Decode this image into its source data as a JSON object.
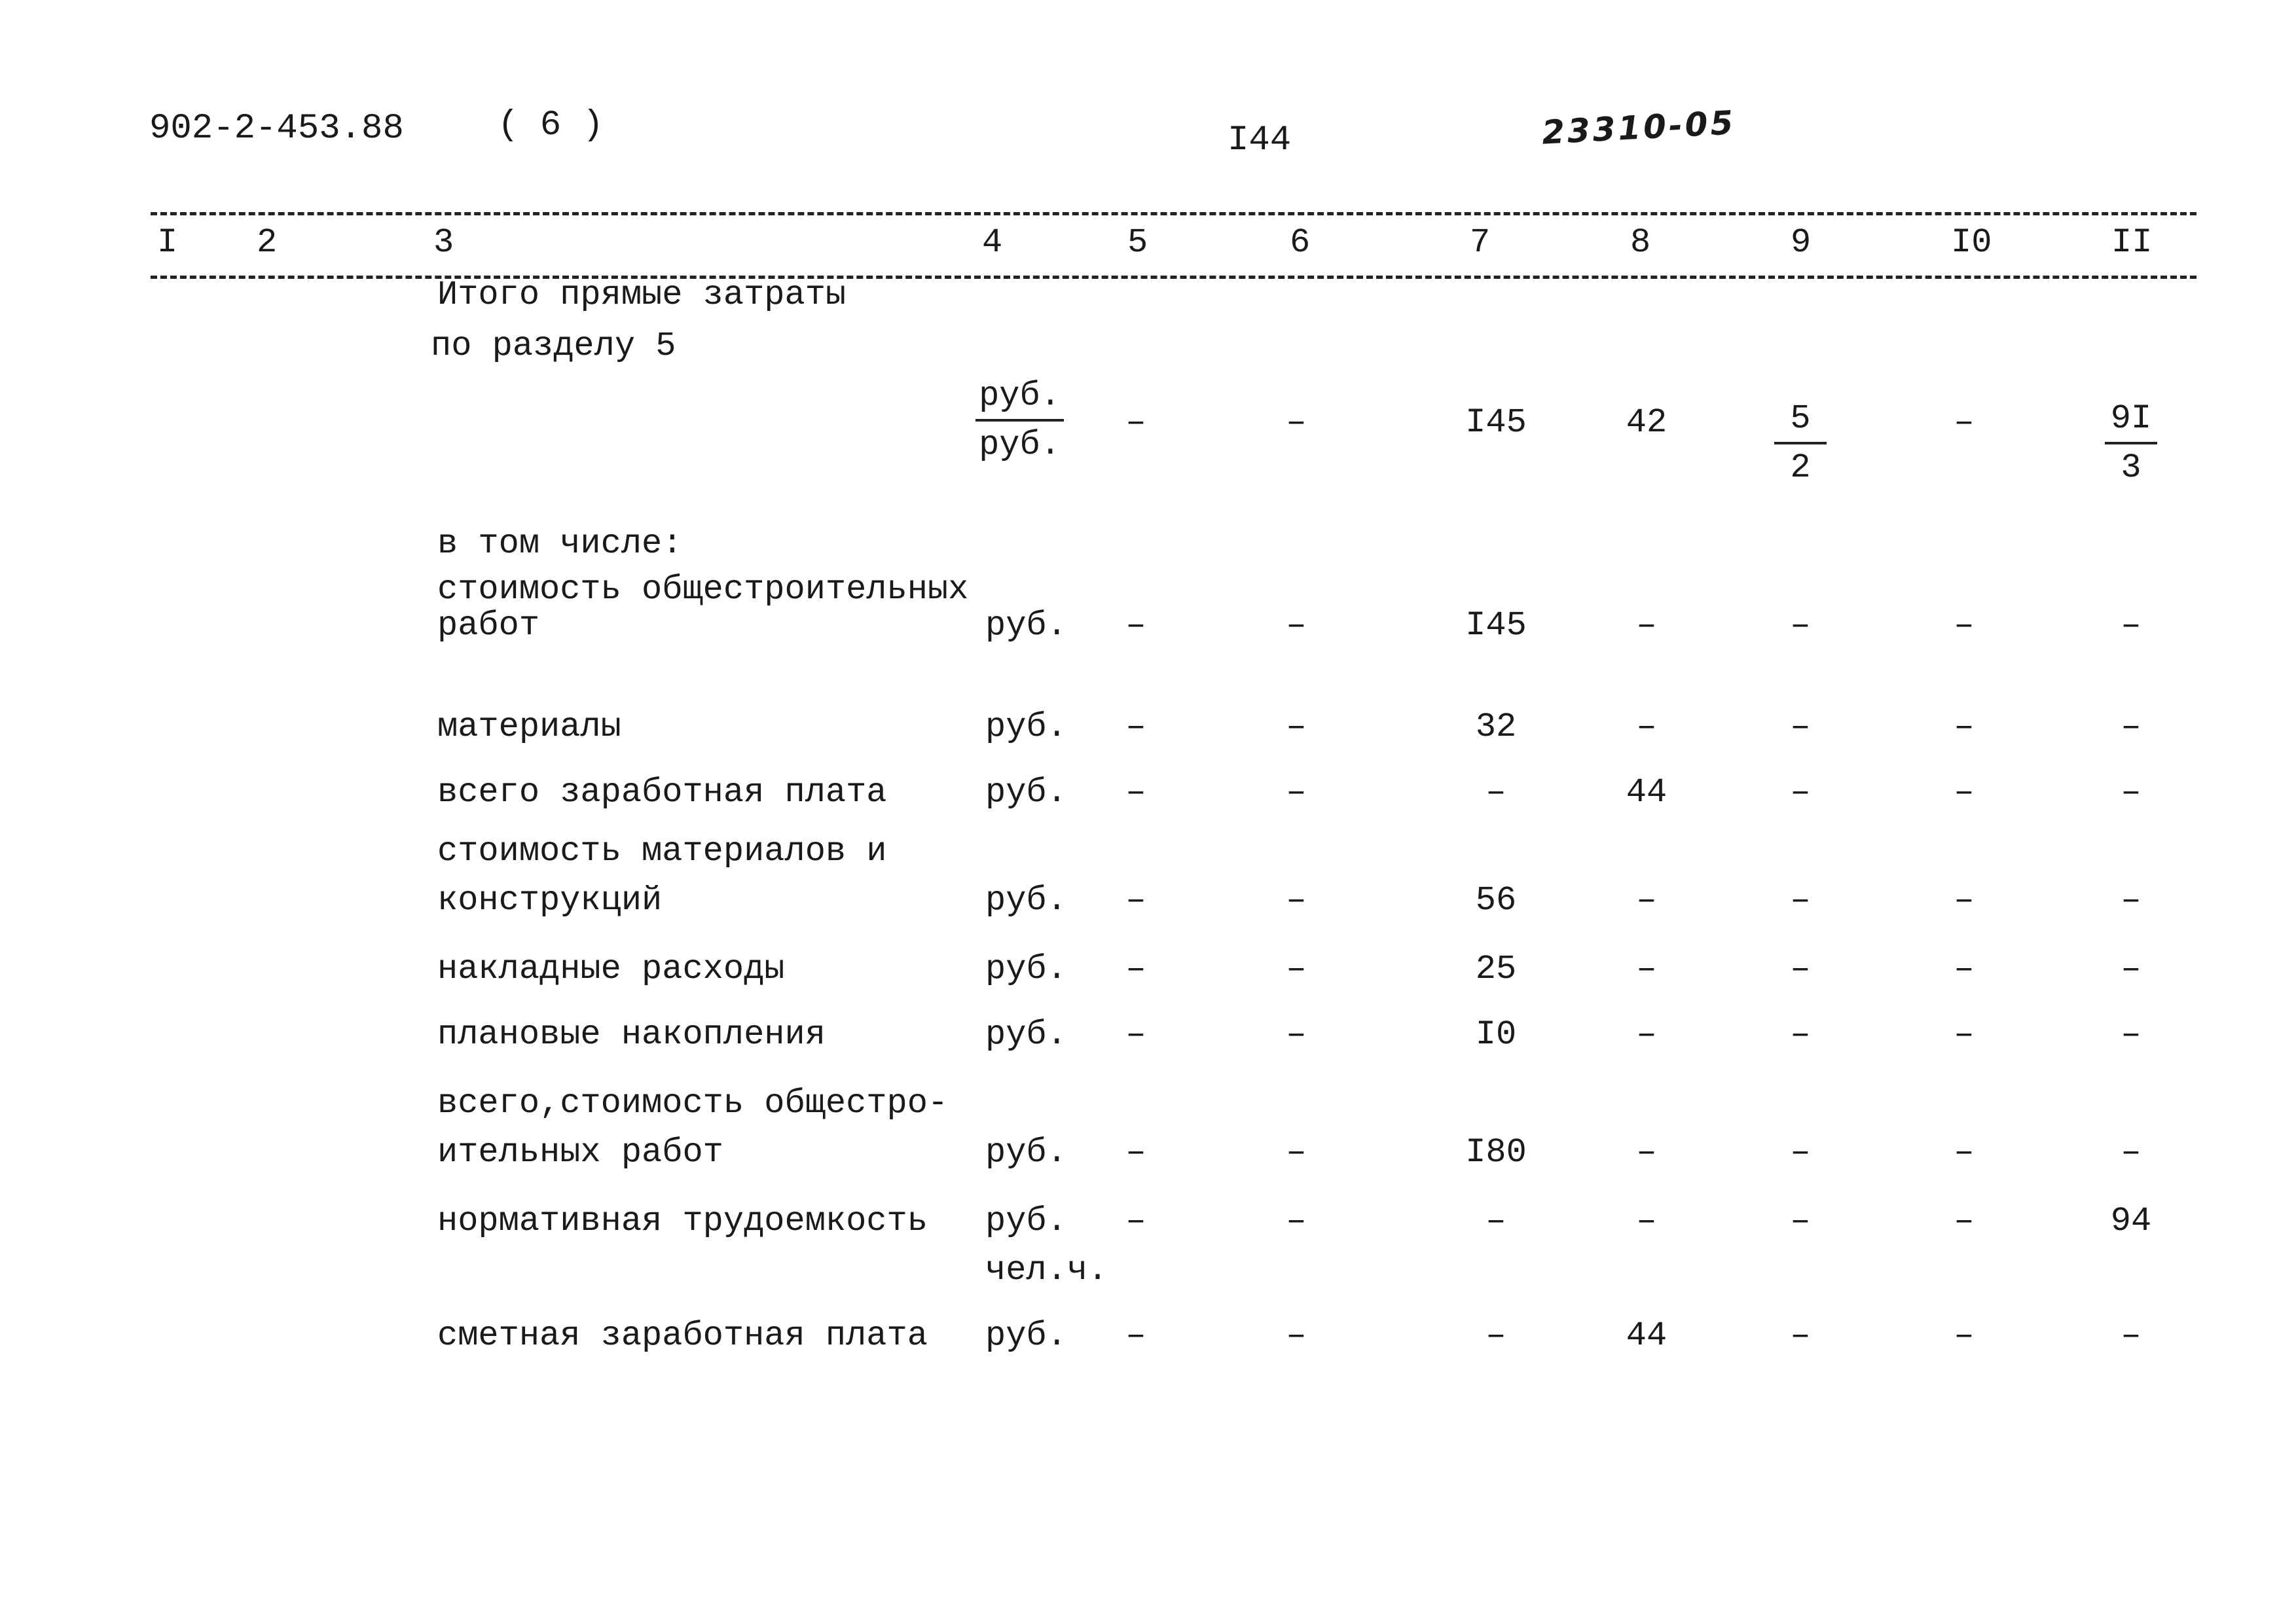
{
  "header": {
    "doc_code": "902-2-453.88",
    "sheet_part": "( 6 )",
    "page_number": "I44",
    "stamp_number": "23310-05"
  },
  "columns": [
    "I",
    "2",
    "3",
    "4",
    "5",
    "6",
    "7",
    "8",
    "9",
    "I0",
    "II"
  ],
  "rows": [
    {
      "label": [
        "Итого прямые затраты",
        "по разделу 5"
      ],
      "unit": {
        "top": "руб.",
        "bottom": "руб."
      },
      "values": [
        "–",
        "–",
        "I45",
        "42",
        {
          "top": "5",
          "bottom": "2"
        },
        "–",
        {
          "top": "9I",
          "bottom": "3"
        }
      ]
    },
    {
      "label": [
        "в том числе:"
      ],
      "unit": null,
      "values": null
    },
    {
      "label": [
        "стоимость общестроительных",
        "работ"
      ],
      "unit": "руб.",
      "values": [
        "–",
        "–",
        "I45",
        "–",
        "–",
        "–",
        "–"
      ]
    },
    {
      "label": [
        "материалы"
      ],
      "unit": "руб.",
      "values": [
        "–",
        "–",
        "32",
        "–",
        "–",
        "–",
        "–"
      ]
    },
    {
      "label": [
        "всего заработная плата"
      ],
      "unit": "руб.",
      "values": [
        "–",
        "–",
        "–",
        "44",
        "–",
        "–",
        "–"
      ]
    },
    {
      "label": [
        "стоимость материалов и",
        "конструкций"
      ],
      "unit": "руб.",
      "values": [
        "–",
        "–",
        "56",
        "–",
        "–",
        "–",
        "–"
      ]
    },
    {
      "label": [
        "накладные расходы"
      ],
      "unit": "руб.",
      "values": [
        "–",
        "–",
        "25",
        "–",
        "–",
        "–",
        "–"
      ]
    },
    {
      "label": [
        "плановые накопления"
      ],
      "unit": "руб.",
      "values": [
        "–",
        "–",
        "I0",
        "–",
        "–",
        "–",
        "–"
      ]
    },
    {
      "label": [
        "всего,стоимость общестро-",
        "ительных работ"
      ],
      "unit": "руб.",
      "values": [
        "–",
        "–",
        "I80",
        "–",
        "–",
        "–",
        "–"
      ]
    },
    {
      "label": [
        "нормативная трудоемкость"
      ],
      "unit": [
        "руб.",
        "чел.ч."
      ],
      "values": [
        "–",
        "–",
        "–",
        "–",
        "–",
        "–",
        "94"
      ]
    },
    {
      "label": [
        "сметная заработная плата"
      ],
      "unit": "руб.",
      "values": [
        "–",
        "–",
        "–",
        "44",
        "–",
        "–",
        "–"
      ]
    }
  ]
}
